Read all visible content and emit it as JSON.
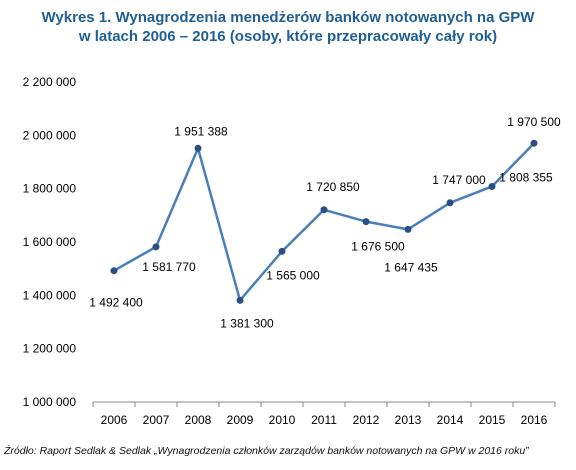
{
  "title_line1": "Wykres 1. Wynagrodzenia menedżerów banków notowanych na GPW",
  "title_line2": "w latach 2006 – 2016 (osoby, które przepracowały cały rok)",
  "source": "Źródło: Raport Sedlak & Sedlak „Wynagrodzenia członków zarządów banków notowanych na GPW w 2016 roku”",
  "colors": {
    "line": "#4a7ebb",
    "marker": "#2b4f82",
    "title": "#1f5f93"
  },
  "chart_data": {
    "type": "line",
    "title": "Wykres 1. Wynagrodzenia menedżerów banków notowanych na GPW w latach 2006 – 2016 (osoby, które przepracowały cały rok)",
    "categories": [
      "2006",
      "2007",
      "2008",
      "2009",
      "2010",
      "2011",
      "2012",
      "2013",
      "2014",
      "2015",
      "2016"
    ],
    "values": [
      1492400,
      1581770,
      1951388,
      1381300,
      1565000,
      1720850,
      1676500,
      1647435,
      1747000,
      1808355,
      1970500
    ],
    "value_labels": [
      "1 492 400",
      "1 581 770",
      "1 951 388",
      "1 381 300",
      "1 565 000",
      "1 720 850",
      "1 676 500",
      "1 647 435",
      "1 747 000",
      "1 808 355",
      "1 970 500"
    ],
    "ylim": [
      1000000,
      2200000
    ],
    "yticks": [
      1000000,
      1200000,
      1400000,
      1600000,
      1800000,
      2000000,
      2200000
    ],
    "ytick_labels": [
      "1 000 000",
      "1 200 000",
      "1 400 000",
      "1 600 000",
      "1 800 000",
      "2 000 000",
      "2 200 000"
    ],
    "grid": false,
    "legend": "none"
  }
}
